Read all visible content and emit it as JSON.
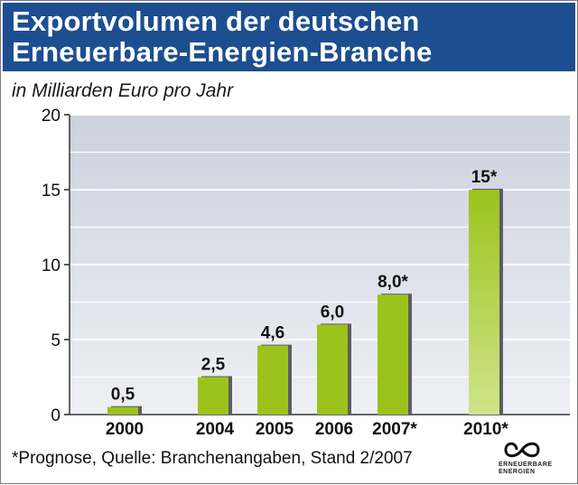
{
  "chart_data": {
    "type": "bar",
    "title": "Exportvolumen der deutschen\nErneuerbare-Energien-Branche",
    "subtitle": "in Milliarden Euro pro Jahr",
    "categories": [
      "2000",
      "2004",
      "2005",
      "2006",
      "2007*",
      "2010*"
    ],
    "values": [
      0.5,
      2.5,
      4.6,
      6.0,
      8.0,
      15
    ],
    "value_labels": [
      "0,5",
      "2,5",
      "4,6",
      "6,0",
      "8,0*",
      "15*"
    ],
    "ylim": [
      0,
      20
    ],
    "yticks": [
      0,
      5,
      10,
      15,
      20
    ],
    "xlabel": "",
    "ylabel": "",
    "grid": true,
    "footnote": "*Prognose, Quelle: Branchenangaben, Stand 2/2007"
  },
  "logo": {
    "name": "ERNEUERBARE\nENERGIEN"
  },
  "colors": {
    "header_bg": "#1d4e8f",
    "bar": "#9cc31c",
    "bar_light": "#cfe58a",
    "plot_bg_top": "#cdd1de",
    "plot_bg_bottom": "#eef0f5"
  }
}
